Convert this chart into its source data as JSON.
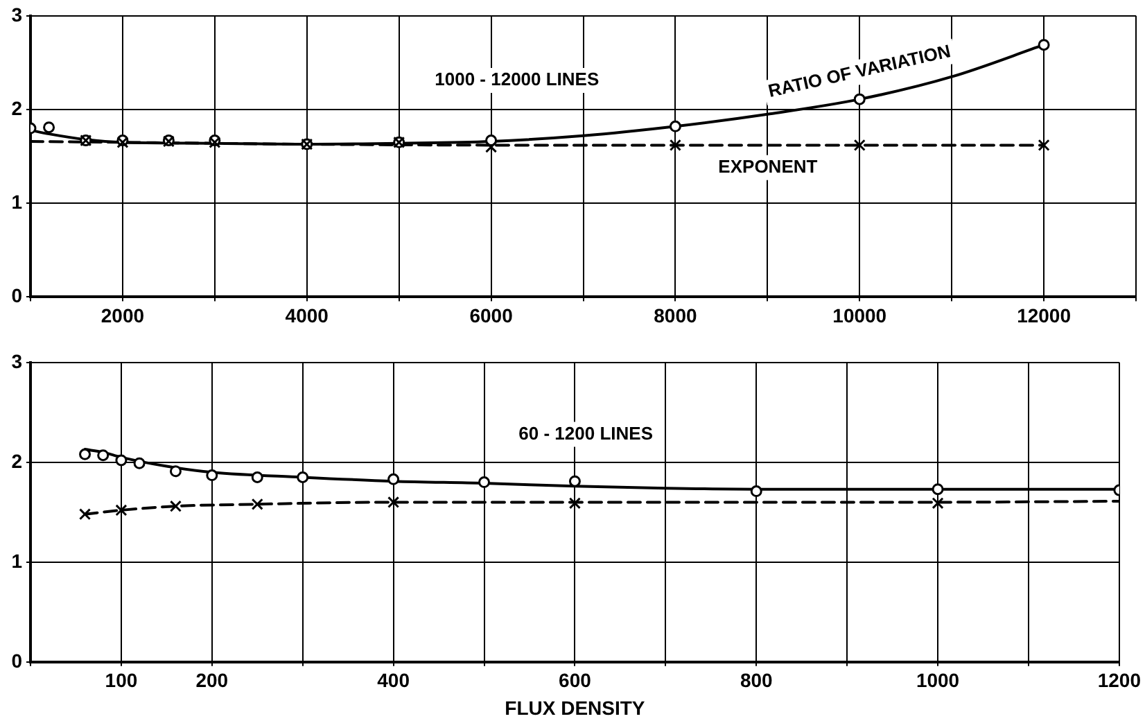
{
  "chart_data": [
    {
      "type": "line",
      "xlim": [
        1000,
        13000
      ],
      "xticks": [
        {
          "value": 1000,
          "label": null
        },
        2000,
        {
          "value": 3000,
          "label": null
        },
        4000,
        {
          "value": 5000,
          "label": null
        },
        6000,
        {
          "value": 7000,
          "label": null
        },
        8000,
        {
          "value": 9000,
          "label": null
        },
        10000,
        {
          "value": 11000,
          "label": null
        },
        12000,
        {
          "value": 13000,
          "label": null
        }
      ],
      "ylim": [
        0,
        3
      ],
      "yticks": [
        0,
        1,
        2,
        3
      ],
      "grid": true,
      "legend": false,
      "annotations": [
        "1000 - 12000 LINES",
        "RATIO OF VARIATION",
        "EXPONENT"
      ],
      "series": [
        {
          "type": "line",
          "line_style": "solid",
          "marker": "none",
          "color": "#000000",
          "x": [
            1000,
            1200,
            1600,
            2000,
            3000,
            4000,
            5000,
            6000,
            7000,
            8000,
            9000,
            10000,
            11000,
            12000
          ],
          "values": [
            1.78,
            1.74,
            1.68,
            1.65,
            1.64,
            1.63,
            1.64,
            1.66,
            1.72,
            1.82,
            1.95,
            2.11,
            2.35,
            2.69
          ]
        },
        {
          "type": "line",
          "line_style": "dashed",
          "marker": "none",
          "color": "#000000",
          "x": [
            1000,
            2000,
            4000,
            6000,
            12000
          ],
          "values": [
            1.66,
            1.65,
            1.63,
            1.62,
            1.62
          ]
        },
        {
          "type": "scatter",
          "marker": "circle",
          "color": "#000000",
          "x": [
            1000,
            1200,
            1600,
            2000,
            2500,
            3000,
            4000,
            5000,
            6000,
            8000,
            10000,
            12000
          ],
          "values": [
            1.8,
            1.81,
            1.67,
            1.67,
            1.67,
            1.67,
            1.63,
            1.65,
            1.67,
            1.82,
            2.11,
            2.69
          ]
        },
        {
          "type": "scatter",
          "marker": "cross",
          "color": "#000000",
          "x": [
            1600,
            2000,
            2500,
            3000,
            4000,
            5000,
            6000,
            8000,
            10000,
            12000
          ],
          "values": [
            1.67,
            1.65,
            1.66,
            1.65,
            1.63,
            1.65,
            1.6,
            1.62,
            1.62,
            1.62
          ]
        }
      ]
    },
    {
      "type": "line",
      "xlabel": "FLUX DENSITY",
      "xlim": [
        0,
        1200
      ],
      "xticks": [
        {
          "value": 0,
          "label": null
        },
        100,
        200,
        {
          "value": 300,
          "label": null
        },
        400,
        {
          "value": 500,
          "label": null
        },
        600,
        {
          "value": 700,
          "label": null
        },
        800,
        {
          "value": 900,
          "label": null
        },
        1000,
        {
          "value": 1100,
          "label": null
        },
        1200
      ],
      "ylim": [
        0,
        3
      ],
      "yticks": [
        0,
        1,
        2,
        3
      ],
      "grid": true,
      "legend": false,
      "annotations": [
        "60 - 1200 LINES"
      ],
      "series": [
        {
          "type": "line",
          "line_style": "solid",
          "marker": "none",
          "color": "#000000",
          "x": [
            60,
            80,
            100,
            150,
            200,
            300,
            400,
            500,
            600,
            700,
            800,
            1000,
            1200
          ],
          "values": [
            2.13,
            2.1,
            2.05,
            1.96,
            1.9,
            1.85,
            1.81,
            1.79,
            1.76,
            1.74,
            1.73,
            1.73,
            1.73
          ]
        },
        {
          "type": "line",
          "line_style": "dashed",
          "marker": "none",
          "color": "#000000",
          "x": [
            60,
            100,
            160,
            250,
            400,
            600,
            1000,
            1200
          ],
          "values": [
            1.48,
            1.52,
            1.56,
            1.58,
            1.6,
            1.6,
            1.6,
            1.61
          ]
        },
        {
          "type": "scatter",
          "marker": "circle",
          "color": "#000000",
          "x": [
            60,
            80,
            100,
            120,
            160,
            200,
            250,
            300,
            400,
            500,
            600,
            800,
            1000,
            1200
          ],
          "values": [
            2.08,
            2.07,
            2.02,
            1.99,
            1.91,
            1.87,
            1.85,
            1.85,
            1.83,
            1.8,
            1.81,
            1.71,
            1.73,
            1.72
          ]
        },
        {
          "type": "scatter",
          "marker": "cross",
          "color": "#000000",
          "x": [
            60,
            100,
            160,
            250,
            400,
            600,
            1000
          ],
          "values": [
            1.48,
            1.52,
            1.56,
            1.58,
            1.6,
            1.59,
            1.59
          ]
        }
      ]
    }
  ]
}
